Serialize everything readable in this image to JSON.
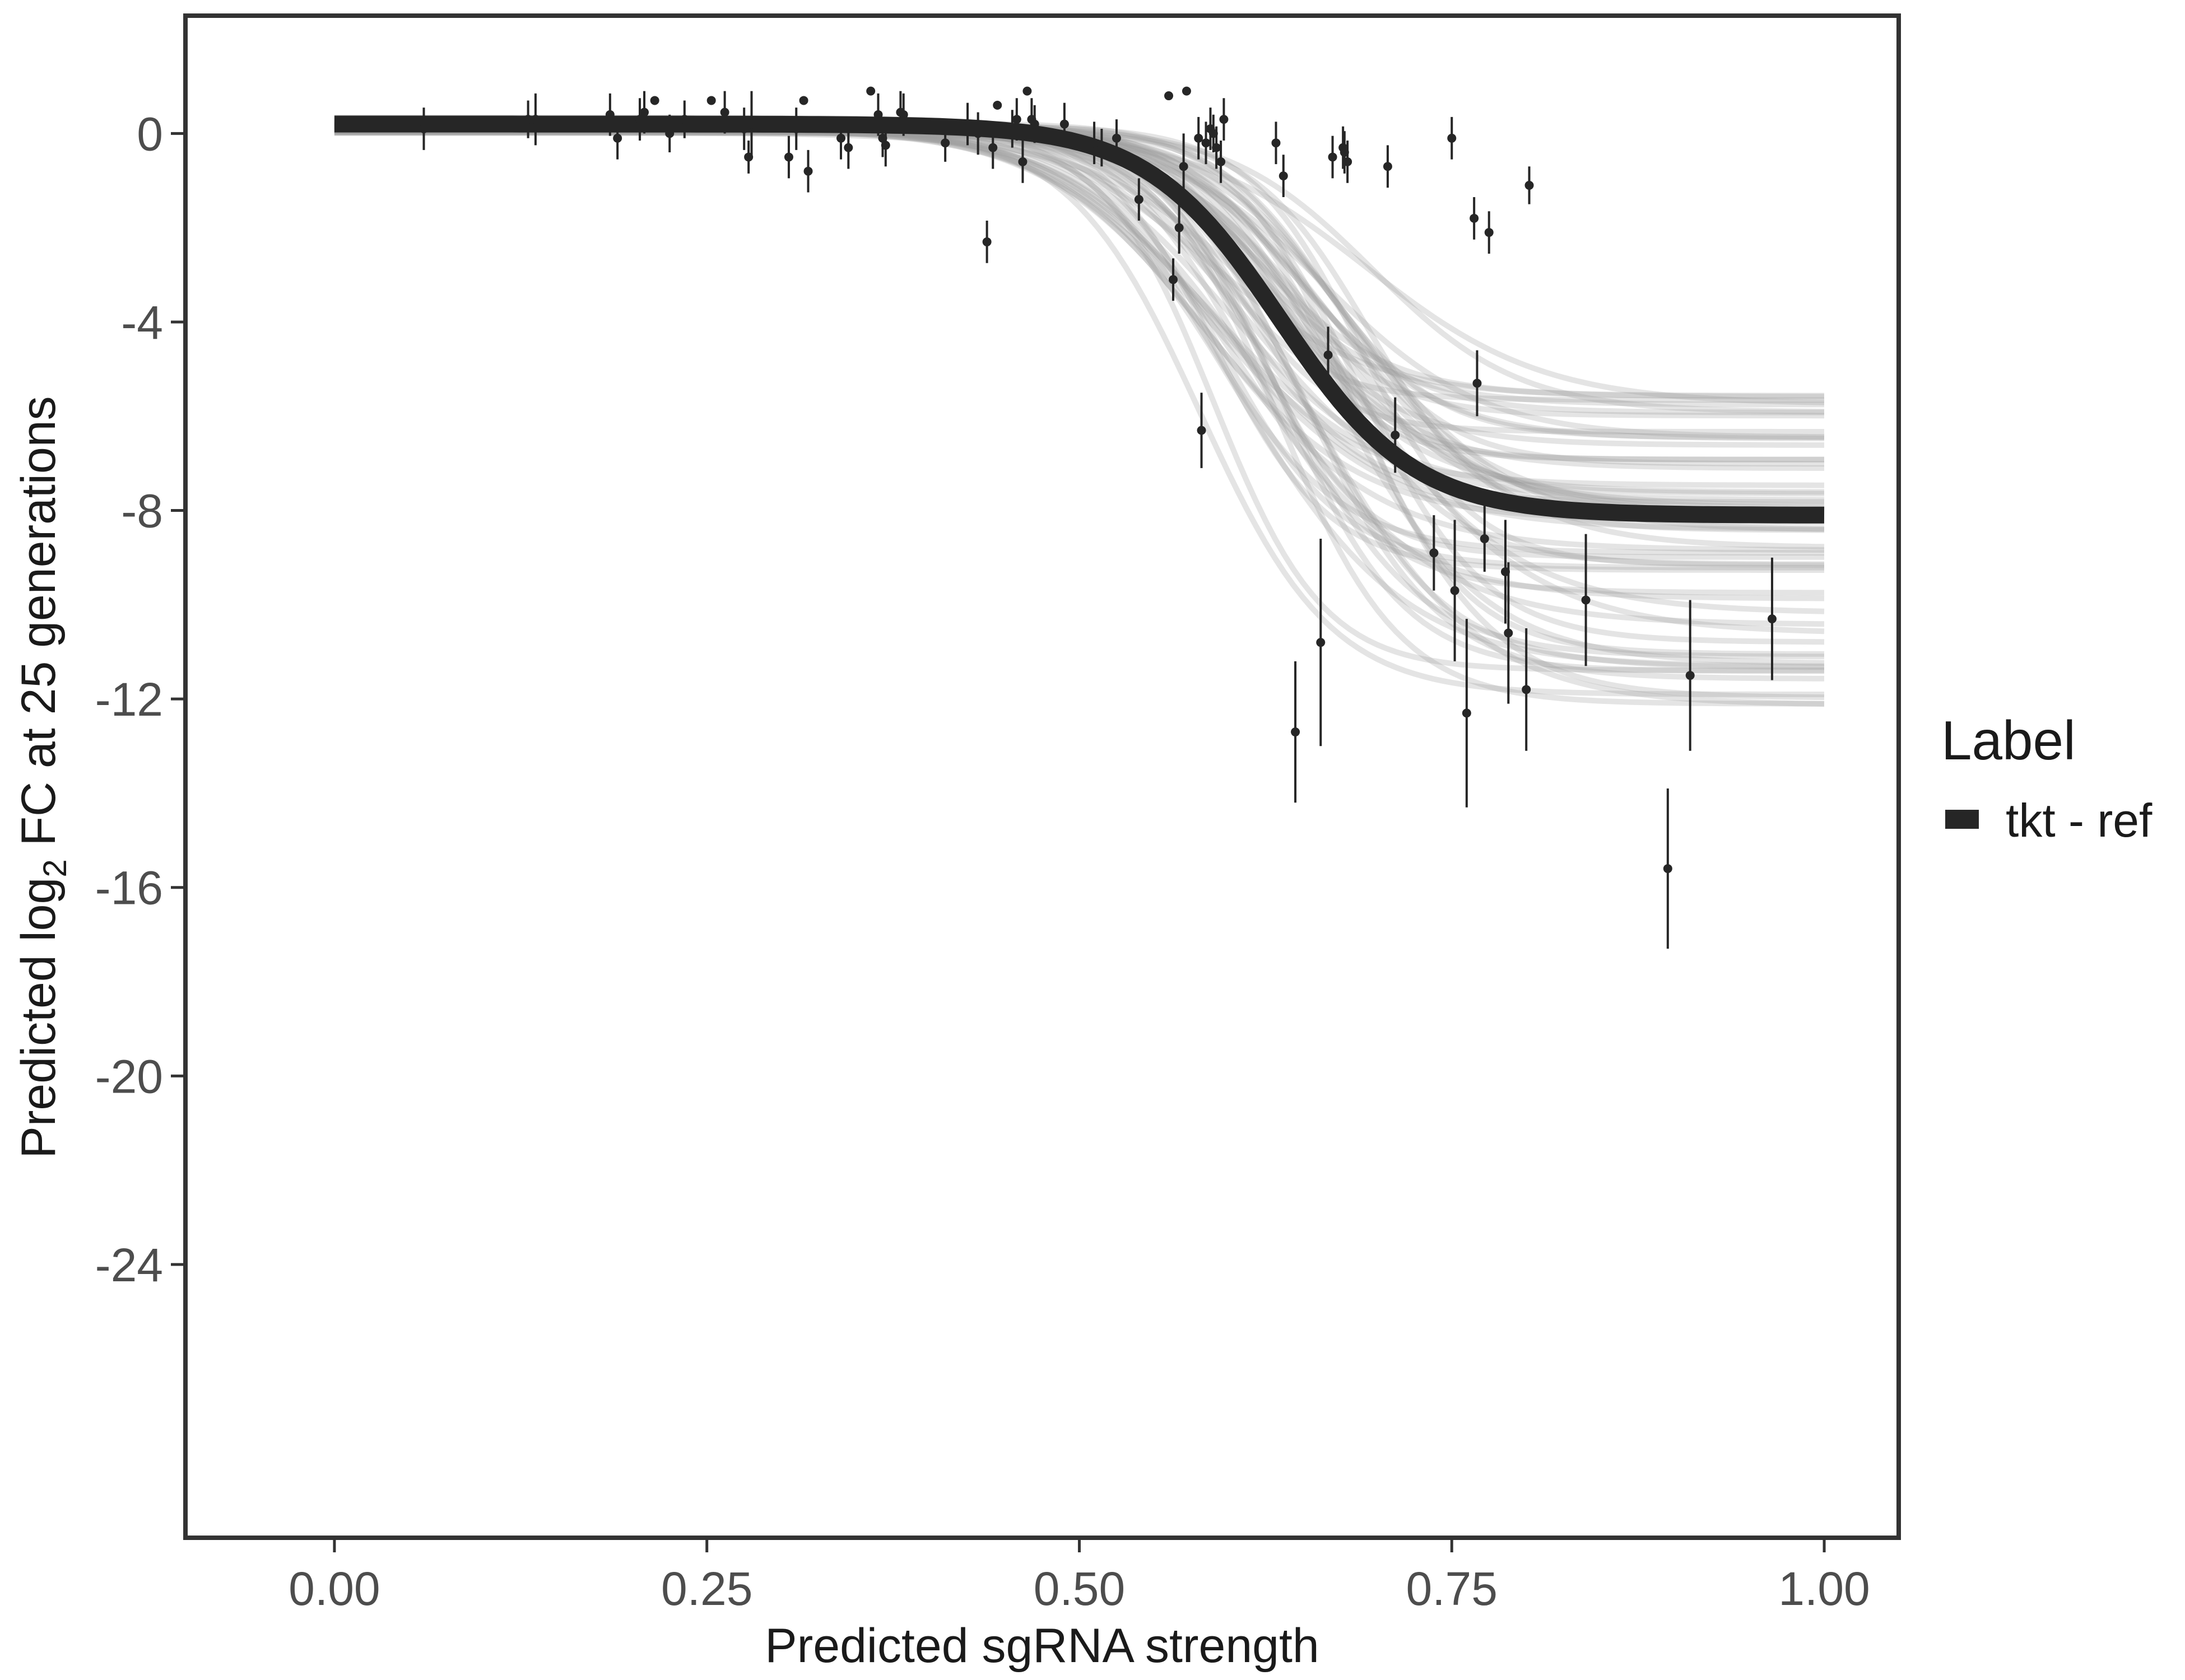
{
  "chart_data": {
    "type": "scatter",
    "title": "",
    "xlabel": "Predicted sgRNA strength",
    "ylabel_prefix": "Predicted  log",
    "ylabel_subscript": "2",
    "ylabel_suffix": " FC at 25 generations",
    "xlim": [
      -0.1,
      1.05
    ],
    "ylim": [
      -29.8,
      2.5
    ],
    "x_ticks": [
      0,
      0.25,
      0.5,
      0.75,
      1
    ],
    "x_tick_labels": [
      "0.00",
      "0.25",
      "0.50",
      "0.75",
      "1.00"
    ],
    "y_ticks": [
      0,
      -4,
      -8,
      -12,
      -16,
      -20,
      -24
    ],
    "y_tick_labels": [
      "0",
      "-4",
      "-8",
      "-12",
      "-16",
      "-20",
      "-24"
    ],
    "grid": false,
    "legend": {
      "title": "Label",
      "position": "right",
      "entries": [
        {
          "label": "tkt - ref",
          "color": "#262626"
        }
      ]
    },
    "colors": {
      "fit_line": "#262626",
      "posterior_draws": "#9e9e9e",
      "points": "#262626",
      "frame": "#333333",
      "background": "#ffffff"
    },
    "fit_curve": {
      "model": "logistic",
      "upper": 0.2,
      "lower": -8.1,
      "midpoint": 0.635,
      "scale": 0.045,
      "x_range": [
        0,
        1
      ]
    },
    "posterior_draws": {
      "count": 60,
      "upper_range": [
        0.0,
        0.35
      ],
      "lower_range": [
        -5.4,
        -12.2
      ],
      "midpoint_range": [
        0.58,
        0.7
      ],
      "scale_range": [
        0.035,
        0.06
      ]
    },
    "points": [
      {
        "x": 0.06,
        "y": 0.1,
        "err": 0.45
      },
      {
        "x": 0.13,
        "y": 0.3,
        "err": 0.4
      },
      {
        "x": 0.135,
        "y": 0.3,
        "err": 0.55
      },
      {
        "x": 0.185,
        "y": 0.4,
        "err": 0.45
      },
      {
        "x": 0.19,
        "y": -0.1,
        "err": 0.45
      },
      {
        "x": 0.205,
        "y": 0.3,
        "err": 0.45
      },
      {
        "x": 0.208,
        "y": 0.45,
        "err": 0.45
      },
      {
        "x": 0.215,
        "y": 0.7,
        "err": 0.0
      },
      {
        "x": 0.225,
        "y": 0.0,
        "err": 0.4
      },
      {
        "x": 0.235,
        "y": 0.3,
        "err": 0.4
      },
      {
        "x": 0.253,
        "y": 0.7,
        "err": 0.0
      },
      {
        "x": 0.262,
        "y": 0.45,
        "err": 0.45
      },
      {
        "x": 0.275,
        "y": 0.1,
        "err": 0.45
      },
      {
        "x": 0.278,
        "y": -0.5,
        "err": 0.35
      },
      {
        "x": 0.28,
        "y": 0.2,
        "err": 0.7
      },
      {
        "x": 0.305,
        "y": -0.5,
        "err": 0.45
      },
      {
        "x": 0.31,
        "y": 0.1,
        "err": 0.45
      },
      {
        "x": 0.315,
        "y": 0.7,
        "err": 0.0
      },
      {
        "x": 0.318,
        "y": -0.8,
        "err": 0.45
      },
      {
        "x": 0.34,
        "y": -0.1,
        "err": 0.45
      },
      {
        "x": 0.345,
        "y": -0.3,
        "err": 0.45
      },
      {
        "x": 0.36,
        "y": 0.9,
        "err": 0.0
      },
      {
        "x": 0.365,
        "y": 0.4,
        "err": 0.45
      },
      {
        "x": 0.368,
        "y": -0.1,
        "err": 0.4
      },
      {
        "x": 0.37,
        "y": -0.25,
        "err": 0.45
      },
      {
        "x": 0.38,
        "y": 0.45,
        "err": 0.45
      },
      {
        "x": 0.382,
        "y": 0.4,
        "err": 0.45
      },
      {
        "x": 0.41,
        "y": -0.2,
        "err": 0.4
      },
      {
        "x": 0.425,
        "y": 0.2,
        "err": 0.45
      },
      {
        "x": 0.432,
        "y": 0.0,
        "err": 0.45
      },
      {
        "x": 0.438,
        "y": -2.3,
        "err": 0.45
      },
      {
        "x": 0.442,
        "y": -0.3,
        "err": 0.45
      },
      {
        "x": 0.445,
        "y": 0.6,
        "err": 0.0
      },
      {
        "x": 0.455,
        "y": 0.1,
        "err": 0.4
      },
      {
        "x": 0.458,
        "y": 0.3,
        "err": 0.45
      },
      {
        "x": 0.462,
        "y": -0.6,
        "err": 0.45
      },
      {
        "x": 0.465,
        "y": 0.9,
        "err": 0.0
      },
      {
        "x": 0.468,
        "y": 0.3,
        "err": 0.45
      },
      {
        "x": 0.47,
        "y": 0.2,
        "err": 0.4
      },
      {
        "x": 0.49,
        "y": 0.2,
        "err": 0.45
      },
      {
        "x": 0.51,
        "y": -0.2,
        "err": 0.45
      },
      {
        "x": 0.515,
        "y": -0.3,
        "err": 0.4
      },
      {
        "x": 0.525,
        "y": -0.1,
        "err": 0.4
      },
      {
        "x": 0.54,
        "y": -1.4,
        "err": 0.45
      },
      {
        "x": 0.56,
        "y": 0.8,
        "err": 0.0
      },
      {
        "x": 0.563,
        "y": -3.1,
        "err": 0.45
      },
      {
        "x": 0.567,
        "y": -2.0,
        "err": 0.55
      },
      {
        "x": 0.57,
        "y": -0.7,
        "err": 0.7
      },
      {
        "x": 0.572,
        "y": 0.9,
        "err": 0.0
      },
      {
        "x": 0.58,
        "y": -0.1,
        "err": 0.45
      },
      {
        "x": 0.582,
        "y": -6.3,
        "err": 0.8
      },
      {
        "x": 0.585,
        "y": -0.2,
        "err": 0.45
      },
      {
        "x": 0.588,
        "y": 0.1,
        "err": 0.45
      },
      {
        "x": 0.59,
        "y": 0.0,
        "err": 0.4
      },
      {
        "x": 0.592,
        "y": -0.3,
        "err": 0.45
      },
      {
        "x": 0.595,
        "y": -0.6,
        "err": 0.45
      },
      {
        "x": 0.597,
        "y": 0.3,
        "err": 0.45
      },
      {
        "x": 0.632,
        "y": -0.2,
        "err": 0.45
      },
      {
        "x": 0.637,
        "y": -0.9,
        "err": 0.45
      },
      {
        "x": 0.645,
        "y": -12.7,
        "err": 1.5
      },
      {
        "x": 0.662,
        "y": -10.8,
        "err": 2.2
      },
      {
        "x": 0.667,
        "y": -4.7,
        "err": 0.6
      },
      {
        "x": 0.67,
        "y": -0.5,
        "err": 0.45
      },
      {
        "x": 0.677,
        "y": -0.3,
        "err": 0.45
      },
      {
        "x": 0.678,
        "y": -0.4,
        "err": 0.45
      },
      {
        "x": 0.68,
        "y": -0.6,
        "err": 0.45
      },
      {
        "x": 0.707,
        "y": -0.7,
        "err": 0.45
      },
      {
        "x": 0.712,
        "y": -6.4,
        "err": 0.8
      },
      {
        "x": 0.738,
        "y": -8.9,
        "err": 0.8
      },
      {
        "x": 0.75,
        "y": -0.1,
        "err": 0.45
      },
      {
        "x": 0.752,
        "y": -9.7,
        "err": 1.5
      },
      {
        "x": 0.76,
        "y": -12.3,
        "err": 2.0
      },
      {
        "x": 0.765,
        "y": -1.8,
        "err": 0.45
      },
      {
        "x": 0.767,
        "y": -5.3,
        "err": 0.7
      },
      {
        "x": 0.772,
        "y": -8.6,
        "err": 0.7
      },
      {
        "x": 0.775,
        "y": -2.1,
        "err": 0.45
      },
      {
        "x": 0.786,
        "y": -9.3,
        "err": 1.1
      },
      {
        "x": 0.788,
        "y": -10.6,
        "err": 1.5
      },
      {
        "x": 0.8,
        "y": -11.8,
        "err": 1.3
      },
      {
        "x": 0.802,
        "y": -1.1,
        "err": 0.4
      },
      {
        "x": 0.84,
        "y": -9.9,
        "err": 1.4
      },
      {
        "x": 0.895,
        "y": -15.6,
        "err": 1.7
      },
      {
        "x": 0.91,
        "y": -11.5,
        "err": 1.6
      },
      {
        "x": 0.965,
        "y": -10.3,
        "err": 1.3
      }
    ]
  }
}
